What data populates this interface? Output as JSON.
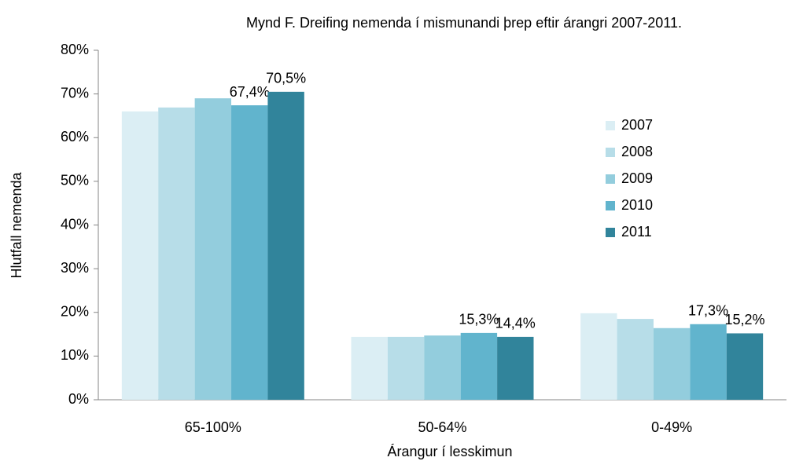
{
  "chart_data": {
    "type": "bar",
    "title": "Mynd F. Dreifing nemenda í mismunandi þrep eftir árangri 2007-2011.",
    "x_label": "Árangur í lesskimun",
    "y_label": "Hlutfall nemenda",
    "categories": [
      "65-100%",
      "50-64%",
      "0-49%"
    ],
    "series": [
      {
        "name": "2007",
        "color": "#dbeef4",
        "values": [
          66.0,
          14.4,
          19.8
        ]
      },
      {
        "name": "2008",
        "color": "#b7dde8",
        "values": [
          66.9,
          14.4,
          18.5
        ]
      },
      {
        "name": "2009",
        "color": "#93cddd",
        "values": [
          69.0,
          14.7,
          16.4
        ]
      },
      {
        "name": "2010",
        "color": "#61b4cd",
        "values": [
          67.4,
          15.3,
          17.3
        ],
        "value_labels": [
          "67,4%",
          "15,3%",
          "17,3%"
        ]
      },
      {
        "name": "2011",
        "color": "#31849b",
        "values": [
          70.5,
          14.4,
          15.2
        ],
        "value_labels": [
          "70,5%",
          "14,4%",
          "15,2%"
        ]
      }
    ],
    "ylim": [
      0,
      80
    ],
    "yticks": [
      {
        "value": 0,
        "label": "0%"
      },
      {
        "value": 10,
        "label": "10%"
      },
      {
        "value": 20,
        "label": "20%"
      },
      {
        "value": 30,
        "label": "30%"
      },
      {
        "value": 40,
        "label": "40%"
      },
      {
        "value": 50,
        "label": "50%"
      },
      {
        "value": 60,
        "label": "60%"
      },
      {
        "value": 70,
        "label": "70%"
      },
      {
        "value": 80,
        "label": "80%"
      }
    ],
    "legend": "right"
  }
}
